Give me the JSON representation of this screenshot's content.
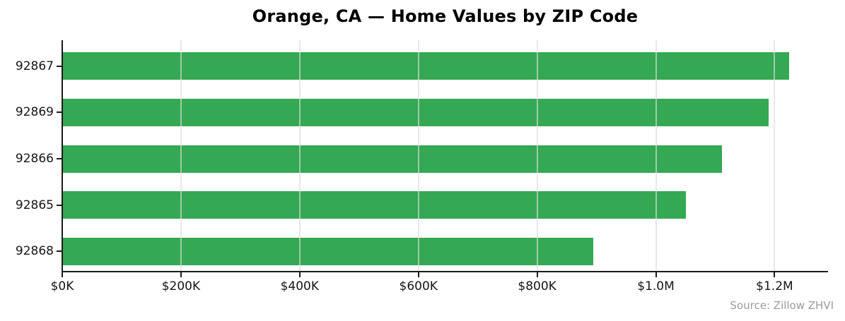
{
  "chart": {
    "title": "Orange, CA — Home Values by ZIP Code",
    "source_note": "Source: Zillow ZHVI",
    "colors": {
      "bar": "#34a853",
      "axis": "#1a1a1a",
      "gridline": "#e3e3e3",
      "tick_label": "#151515",
      "source_text": "#9a9a9a",
      "background": "#ffffff"
    }
  },
  "chart_data": {
    "type": "bar",
    "orientation": "horizontal",
    "title": "Orange, CA — Home Values by ZIP Code",
    "categories": [
      "92867",
      "92869",
      "92866",
      "92865",
      "92868"
    ],
    "values": [
      1225000,
      1190000,
      1111000,
      1051000,
      895000
    ],
    "value_unit": "USD",
    "xlabel": "",
    "ylabel": "",
    "xlim": [
      0,
      1290000
    ],
    "xticks": [
      0,
      200000,
      400000,
      600000,
      800000,
      1000000,
      1200000
    ],
    "xtick_labels": [
      "$0K",
      "$200K",
      "$400K",
      "$600K",
      "$800K",
      "$1.0M",
      "$1.2M"
    ],
    "grid": "x-only, drawn over bars",
    "legend": "none",
    "annotation": "Source: Zillow ZHVI",
    "bar_color": "#34a853"
  }
}
